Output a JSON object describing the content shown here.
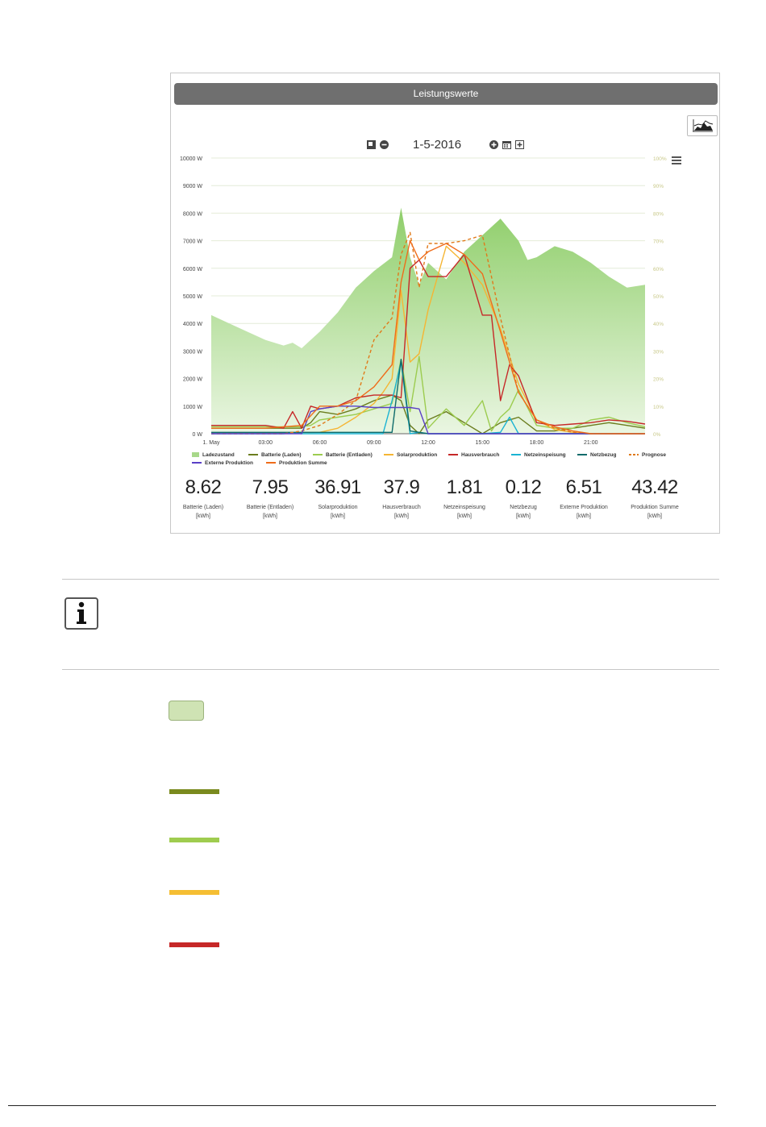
{
  "panel": {
    "title": "Leistungswerte",
    "date": "1-5-2016"
  },
  "chart_data": {
    "type": "line",
    "y_left_ticks": [
      "10000 W",
      "9000 W",
      "8000 W",
      "7000 W",
      "6000 W",
      "5000 W",
      "4000 W",
      "3000 W",
      "2000 W",
      "1000 W",
      "0 W"
    ],
    "y_right_ticks": [
      "100%",
      "90%",
      "80%",
      "70%",
      "60%",
      "50%",
      "40%",
      "30%",
      "20%",
      "10%",
      "0%"
    ],
    "x_ticks": [
      "1. May",
      "03:00",
      "06:00",
      "09:00",
      "12:00",
      "15:00",
      "18:00",
      "21:00"
    ],
    "ylim": [
      0,
      10000
    ],
    "xlim": [
      0,
      24
    ],
    "area": {
      "name": "Ladezustand",
      "color": "#a8d88a",
      "x": [
        0,
        1,
        2,
        3,
        4,
        4.5,
        5,
        6,
        7,
        8,
        9,
        10,
        10.5,
        11,
        11.5,
        12,
        13,
        14,
        15,
        15.5,
        16,
        17,
        17.5,
        18,
        19,
        20,
        21,
        22,
        23,
        24
      ],
      "y": [
        43,
        40,
        37,
        34,
        32,
        33,
        31,
        37,
        44,
        53,
        59,
        64,
        82,
        64,
        54,
        62,
        56,
        66,
        72,
        75,
        78,
        70,
        63,
        64,
        68,
        66,
        62,
        57,
        53,
        54
      ]
    },
    "series": [
      {
        "name": "Batterie (Laden)",
        "color": "#6b7d1e",
        "x": [
          0,
          5,
          5.5,
          6,
          7,
          8,
          9,
          10,
          10.5,
          11,
          11.5,
          12,
          13,
          14,
          15,
          15.5,
          16,
          17,
          18,
          19,
          20,
          21,
          22,
          23,
          24
        ],
        "y": [
          200,
          200,
          400,
          800,
          700,
          900,
          1200,
          1400,
          1200,
          300,
          0,
          500,
          800,
          400,
          0,
          200,
          400,
          600,
          100,
          100,
          200,
          300,
          400,
          300,
          200
        ]
      },
      {
        "name": "Batterie (Entladen)",
        "color": "#9ccc4f",
        "x": [
          0,
          5,
          5.5,
          6,
          7,
          8,
          9,
          10,
          10.5,
          11,
          11.5,
          12,
          13,
          14,
          15,
          15.5,
          16,
          16.5,
          17,
          18,
          19,
          20,
          21,
          22,
          23,
          24
        ],
        "y": [
          250,
          250,
          300,
          500,
          600,
          700,
          900,
          1100,
          2700,
          800,
          2800,
          200,
          900,
          300,
          1200,
          100,
          600,
          900,
          1600,
          300,
          200,
          200,
          500,
          600,
          400,
          250
        ]
      },
      {
        "name": "Solarproduktion",
        "color": "#f5b533",
        "x": [
          0,
          6,
          7,
          8,
          9,
          9.5,
          10,
          10.5,
          11,
          11.5,
          12,
          13,
          14,
          15,
          16,
          17,
          18,
          19,
          20,
          21,
          22,
          24
        ],
        "y": [
          0,
          50,
          200,
          600,
          1100,
          1500,
          2000,
          5200,
          2600,
          2900,
          4500,
          6800,
          6200,
          5400,
          3800,
          1800,
          500,
          150,
          50,
          0,
          0,
          0
        ]
      },
      {
        "name": "Hausverbrauch",
        "color": "#c62828",
        "x": [
          0,
          3,
          4,
          4.5,
          5,
          5.5,
          6,
          7,
          8,
          9,
          10,
          10.5,
          11,
          11.5,
          12,
          13,
          14,
          15,
          15.5,
          16,
          16.5,
          17,
          18,
          19,
          20,
          21,
          22,
          23,
          24
        ],
        "y": [
          300,
          300,
          200,
          800,
          200,
          1000,
          900,
          1000,
          1300,
          1400,
          1400,
          1300,
          6000,
          6300,
          5700,
          5700,
          6500,
          4300,
          4300,
          1200,
          2500,
          2100,
          400,
          300,
          350,
          400,
          500,
          450,
          350
        ]
      },
      {
        "name": "Netzeinspeisung",
        "color": "#1ab3d3",
        "x": [
          0,
          4,
          4.5,
          5,
          9.5,
          10,
          10.5,
          11,
          11.5,
          12,
          15,
          16,
          16.5,
          17,
          24
        ],
        "y": [
          0,
          0,
          50,
          0,
          0,
          1200,
          2600,
          0,
          50,
          0,
          0,
          50,
          600,
          0,
          0
        ]
      },
      {
        "name": "Netzbezug",
        "color": "#0e6b6b",
        "x": [
          0,
          10,
          10.5,
          11,
          11.5,
          12,
          24
        ],
        "y": [
          50,
          50,
          2700,
          100,
          50,
          0,
          0
        ]
      },
      {
        "name": "Prognose",
        "color": "#e07a1a",
        "dashed": true,
        "x": [
          0,
          4,
          5,
          6,
          7,
          8,
          9,
          10,
          10.5,
          11,
          11.5,
          12,
          13,
          14,
          15,
          16,
          17,
          18,
          19,
          20,
          21,
          22,
          24
        ],
        "y": [
          0,
          0,
          100,
          300,
          700,
          1200,
          3400,
          4200,
          6500,
          7300,
          5300,
          6900,
          6900,
          7000,
          7200,
          4200,
          1500,
          500,
          200,
          50,
          0,
          0,
          0
        ]
      },
      {
        "name": "Externe Produktion",
        "color": "#5a3fc6",
        "x": [
          0,
          5,
          5.5,
          6,
          7,
          8,
          9,
          10,
          11,
          11.5,
          12,
          24
        ],
        "y": [
          0,
          0,
          800,
          900,
          1000,
          1000,
          950,
          950,
          950,
          900,
          0,
          0
        ]
      },
      {
        "name": "Produktion Summe",
        "color": "#ef6c1a",
        "x": [
          0,
          3,
          5,
          6,
          7,
          8,
          9,
          10,
          10.5,
          11,
          11.5,
          12,
          13,
          14,
          15,
          16,
          17,
          18,
          19,
          20,
          21,
          22,
          24
        ],
        "y": [
          200,
          200,
          300,
          1000,
          1000,
          1200,
          1700,
          2500,
          5500,
          7000,
          6300,
          6600,
          6900,
          6500,
          5800,
          3700,
          1500,
          500,
          250,
          100,
          0,
          0,
          0
        ]
      }
    ]
  },
  "legend": {
    "ladezustand": "Ladezustand",
    "laden": "Batterie (Laden)",
    "entladen": "Batterie (Entladen)",
    "solar": "Solarproduktion",
    "haus": "Hausverbrauch",
    "einspeisung": "Netzeinspeisung",
    "bezug": "Netzbezug",
    "prognose": "Prognose",
    "extern": "Externe Produktion",
    "summe": "Produktion Summe"
  },
  "stats": [
    {
      "value": "8.62",
      "label": "Batterie (Laden)",
      "unit": "[kWh]"
    },
    {
      "value": "7.95",
      "label": "Batterie (Entladen)",
      "unit": "[kWh]"
    },
    {
      "value": "36.91",
      "label": "Solarproduktion",
      "unit": "[kWh]"
    },
    {
      "value": "37.9",
      "label": "Hausverbrauch",
      "unit": "[kWh]"
    },
    {
      "value": "1.81",
      "label": "Netzeinspeisung",
      "unit": "[kWh]"
    },
    {
      "value": "0.12",
      "label": "Netzbezug",
      "unit": "[kWh]"
    },
    {
      "value": "6.51",
      "label": "Externe Produktion",
      "unit": "[kWh]"
    },
    {
      "value": "43.42",
      "label": "Produktion Summe",
      "unit": "[kWh]"
    }
  ],
  "swatches": {
    "ladezustand": "#cfe3b4",
    "laden": "#7a8a1e",
    "entladen": "#9fcc4f",
    "solar": "#f5be33",
    "haus": "#c62828"
  }
}
